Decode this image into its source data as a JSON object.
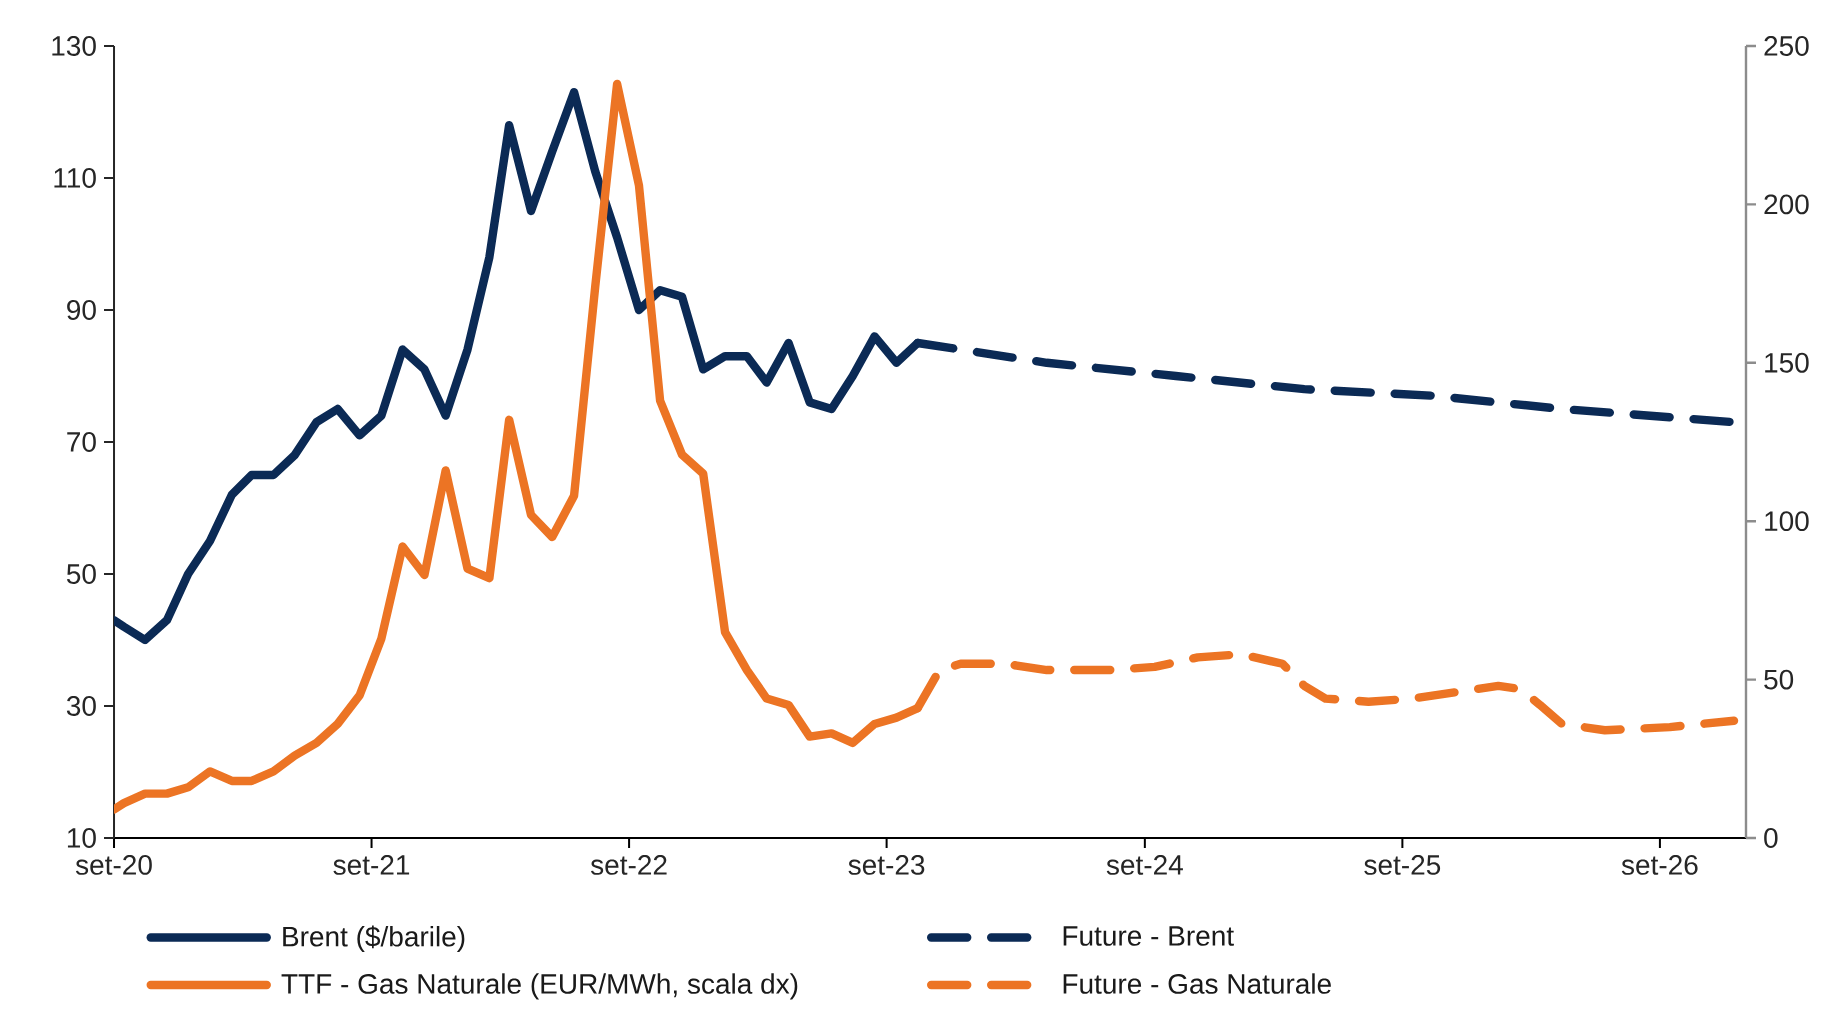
{
  "chart_data": {
    "type": "line",
    "marker": "none",
    "legend": "bottom",
    "xlim": [
      "2020-09",
      "2027-01"
    ],
    "xticks": [
      {
        "value": "2020-09",
        "label": "set-20"
      },
      {
        "value": "2021-09",
        "label": "set-21"
      },
      {
        "value": "2022-09",
        "label": "set-22"
      },
      {
        "value": "2023-09",
        "label": "set-23"
      },
      {
        "value": "2024-09",
        "label": "set-24"
      },
      {
        "value": "2025-09",
        "label": "set-25"
      },
      {
        "value": "2026-09",
        "label": "set-26"
      }
    ],
    "ylim": [
      10,
      130
    ],
    "yticks": [
      10,
      30,
      50,
      70,
      90,
      110,
      130
    ],
    "y2lim": [
      0,
      250
    ],
    "y2ticks": [
      0,
      50,
      100,
      150,
      200,
      250
    ],
    "series": [
      {
        "name": "Brent ($/barile)",
        "color": "#0b2a55",
        "line_style": "solid",
        "x": [
          "2020-09-01",
          "2020-09-15",
          "2020-10-15",
          "2020-11-15",
          "2020-12-15",
          "2021-01-15",
          "2021-02-15",
          "2021-03-15",
          "2021-04-15",
          "2021-05-15",
          "2021-06-15",
          "2021-07-15",
          "2021-08-15",
          "2021-09-15",
          "2021-10-15",
          "2021-11-15",
          "2021-12-15",
          "2022-01-15",
          "2022-02-15",
          "2022-03-15",
          "2022-04-15",
          "2022-05-15",
          "2022-06-15",
          "2022-07-15",
          "2022-08-15",
          "2022-09-15",
          "2022-10-15",
          "2022-11-15",
          "2022-12-15",
          "2023-01-15",
          "2023-02-15",
          "2023-03-15",
          "2023-04-15",
          "2023-05-15",
          "2023-06-15",
          "2023-07-15",
          "2023-08-15",
          "2023-09-15",
          "2023-10-15"
        ],
        "values": [
          43,
          42,
          40,
          43,
          50,
          55,
          62,
          65,
          65,
          68,
          73,
          75,
          71,
          74,
          84,
          81,
          74,
          84,
          98,
          118,
          105,
          114,
          123,
          111,
          101,
          90,
          93,
          92,
          81,
          83,
          83,
          79,
          85,
          76,
          75,
          80,
          86,
          82,
          85
        ]
      },
      {
        "name": "Future - Brent",
        "color": "#0b2a55",
        "line_style": "dashed",
        "x": [
          "2023-10-15",
          "2024-04-15",
          "2024-10-15",
          "2025-04-15",
          "2025-10-15",
          "2026-04-15",
          "2026-12-15"
        ],
        "values": [
          85,
          82,
          80,
          78,
          77,
          75,
          73
        ]
      },
      {
        "name": "TTF - Gas Naturale (EUR/MWh, scala dx)",
        "color": "#ec7424",
        "line_style": "solid",
        "axis": "y2",
        "x": [
          "2020-09-01",
          "2020-09-15",
          "2020-10-15",
          "2020-11-15",
          "2020-12-15",
          "2021-01-15",
          "2021-02-15",
          "2021-03-15",
          "2021-04-15",
          "2021-05-15",
          "2021-06-15",
          "2021-07-15",
          "2021-08-15",
          "2021-09-15",
          "2021-10-15",
          "2021-11-15",
          "2021-12-15",
          "2022-01-15",
          "2022-02-15",
          "2022-03-15",
          "2022-04-15",
          "2022-05-15",
          "2022-06-15",
          "2022-07-15",
          "2022-08-15",
          "2022-09-15",
          "2022-10-15",
          "2022-11-15",
          "2022-12-15",
          "2023-01-15",
          "2023-02-15",
          "2023-03-15",
          "2023-04-15",
          "2023-05-15",
          "2023-06-15",
          "2023-07-15",
          "2023-08-15",
          "2023-09-15",
          "2023-10-15"
        ],
        "values": [
          9,
          11,
          14,
          14,
          16,
          21,
          18,
          18,
          21,
          26,
          30,
          36,
          45,
          63,
          92,
          83,
          116,
          85,
          82,
          132,
          102,
          95,
          108,
          174,
          238,
          206,
          138,
          121,
          115,
          65,
          53,
          44,
          42,
          32,
          33,
          30,
          36,
          38,
          41
        ]
      },
      {
        "name": "Future - Gas Naturale",
        "color": "#ec7424",
        "line_style": "dashed",
        "axis": "y2",
        "x": [
          "2023-10-15",
          "2023-11-15",
          "2023-12-15",
          "2024-02-15",
          "2024-04-15",
          "2024-07-15",
          "2024-09-15",
          "2024-11-15",
          "2025-01-15",
          "2025-03-15",
          "2025-04-15",
          "2025-05-15",
          "2025-07-15",
          "2025-09-15",
          "2025-11-15",
          "2026-01-15",
          "2026-02-15",
          "2026-03-15",
          "2026-04-15",
          "2026-06-15",
          "2026-09-15",
          "2026-12-15"
        ],
        "values": [
          41,
          53,
          55,
          55,
          53,
          53,
          54,
          57,
          58,
          55,
          48,
          44,
          43,
          44,
          46,
          48,
          47,
          42,
          36,
          34,
          35,
          37
        ]
      }
    ]
  }
}
